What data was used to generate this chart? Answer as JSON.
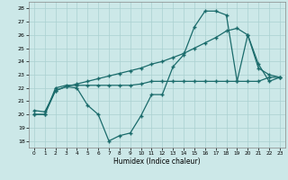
{
  "xlabel": "Humidex (Indice chaleur)",
  "bg_color": "#cce8e8",
  "grid_color": "#aad0d0",
  "line_color": "#1a6b6b",
  "xlim": [
    -0.5,
    23.5
  ],
  "ylim": [
    17.5,
    28.5
  ],
  "xticks": [
    0,
    1,
    2,
    3,
    4,
    5,
    6,
    7,
    8,
    9,
    10,
    11,
    12,
    13,
    14,
    15,
    16,
    17,
    18,
    19,
    20,
    21,
    22,
    23
  ],
  "yticks": [
    18,
    19,
    20,
    21,
    22,
    23,
    24,
    25,
    26,
    27,
    28
  ],
  "series1_x": [
    0,
    1,
    2,
    3,
    4,
    5,
    6,
    7,
    8,
    9,
    10,
    11,
    12,
    13,
    14,
    15,
    16,
    17,
    18,
    19,
    20,
    21,
    22,
    23
  ],
  "series1_y": [
    20.3,
    20.2,
    21.8,
    22.1,
    22.0,
    20.7,
    20.0,
    18.0,
    18.4,
    18.6,
    19.9,
    21.5,
    21.5,
    23.6,
    24.5,
    26.6,
    27.8,
    27.8,
    27.5,
    22.5,
    26.0,
    23.8,
    22.5,
    22.8
  ],
  "series2_x": [
    0,
    1,
    2,
    3,
    4,
    5,
    6,
    7,
    8,
    9,
    10,
    11,
    12,
    13,
    14,
    15,
    16,
    17,
    18,
    19,
    20,
    21,
    22,
    23
  ],
  "series2_y": [
    20.0,
    20.0,
    22.0,
    22.2,
    22.2,
    22.2,
    22.2,
    22.2,
    22.2,
    22.2,
    22.3,
    22.5,
    22.5,
    22.5,
    22.5,
    22.5,
    22.5,
    22.5,
    22.5,
    22.5,
    22.5,
    22.5,
    22.8,
    22.8
  ],
  "series3_x": [
    0,
    1,
    2,
    3,
    4,
    5,
    6,
    7,
    8,
    9,
    10,
    11,
    12,
    13,
    14,
    15,
    16,
    17,
    18,
    19,
    20,
    21,
    22,
    23
  ],
  "series3_y": [
    20.0,
    20.0,
    21.8,
    22.1,
    22.3,
    22.5,
    22.7,
    22.9,
    23.1,
    23.3,
    23.5,
    23.8,
    24.0,
    24.3,
    24.6,
    25.0,
    25.4,
    25.8,
    26.3,
    26.5,
    26.0,
    23.5,
    23.0,
    22.8
  ]
}
